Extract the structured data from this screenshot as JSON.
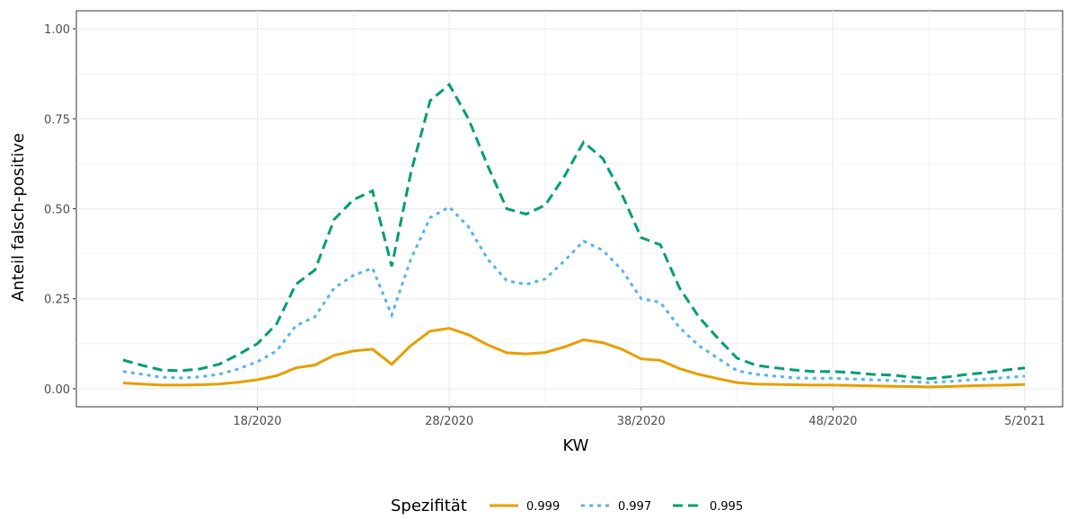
{
  "chart_data": {
    "type": "line",
    "x_label": "KW",
    "y_label": "Anteil falsch-positive",
    "legend_title": "Spezifität",
    "legend_position": "bottom",
    "grid": true,
    "categories": [
      "11/2020",
      "12/2020",
      "13/2020",
      "14/2020",
      "15/2020",
      "16/2020",
      "17/2020",
      "18/2020",
      "19/2020",
      "20/2020",
      "21/2020",
      "22/2020",
      "23/2020",
      "24/2020",
      "25/2020",
      "26/2020",
      "27/2020",
      "28/2020",
      "29/2020",
      "30/2020",
      "31/2020",
      "32/2020",
      "33/2020",
      "34/2020",
      "35/2020",
      "36/2020",
      "37/2020",
      "38/2020",
      "39/2020",
      "40/2020",
      "41/2020",
      "42/2020",
      "43/2020",
      "44/2020",
      "45/2020",
      "46/2020",
      "47/2020",
      "48/2020",
      "49/2020",
      "50/2020",
      "51/2020",
      "52/2020",
      "53/2020",
      "1/2021",
      "2/2021",
      "3/2021",
      "4/2021",
      "5/2021"
    ],
    "xticks": [
      {
        "value": 7,
        "label": "18/2020"
      },
      {
        "value": 17,
        "label": "28/2020"
      },
      {
        "value": 27,
        "label": "38/2020"
      },
      {
        "value": 37,
        "label": "48/2020"
      },
      {
        "value": 47,
        "label": "5/2021"
      }
    ],
    "ylim": [
      -0.05,
      1.05
    ],
    "yticks": [
      {
        "value": 0,
        "label": "0.00"
      },
      {
        "value": 0.25,
        "label": "0.25"
      },
      {
        "value": 0.5,
        "label": "0.50"
      },
      {
        "value": 0.75,
        "label": "0.75"
      },
      {
        "value": 1,
        "label": "1.00"
      }
    ],
    "series": [
      {
        "name": "0.999",
        "color": "#e69f00",
        "dash": "solid",
        "values": [
          0.016,
          0.013,
          0.01,
          0.01,
          0.011,
          0.013,
          0.018,
          0.025,
          0.036,
          0.058,
          0.066,
          0.093,
          0.105,
          0.11,
          0.068,
          0.12,
          0.16,
          0.168,
          0.15,
          0.122,
          0.1,
          0.097,
          0.101,
          0.116,
          0.136,
          0.128,
          0.11,
          0.083,
          0.079,
          0.056,
          0.04,
          0.028,
          0.017,
          0.013,
          0.012,
          0.011,
          0.01,
          0.01,
          0.009,
          0.008,
          0.007,
          0.006,
          0.005,
          0.006,
          0.008,
          0.009,
          0.01,
          0.012
        ]
      },
      {
        "name": "0.997",
        "color": "#56b4e9",
        "dash": "dotted",
        "values": [
          0.048,
          0.04,
          0.032,
          0.03,
          0.033,
          0.04,
          0.055,
          0.075,
          0.105,
          0.175,
          0.2,
          0.28,
          0.315,
          0.335,
          0.205,
          0.36,
          0.475,
          0.505,
          0.45,
          0.36,
          0.3,
          0.29,
          0.305,
          0.355,
          0.41,
          0.385,
          0.33,
          0.25,
          0.24,
          0.17,
          0.12,
          0.085,
          0.05,
          0.04,
          0.035,
          0.03,
          0.029,
          0.029,
          0.027,
          0.025,
          0.023,
          0.02,
          0.017,
          0.02,
          0.024,
          0.027,
          0.031,
          0.035
        ]
      },
      {
        "name": "0.995",
        "color": "#009e73",
        "dash": "dashed",
        "values": [
          0.08,
          0.065,
          0.052,
          0.05,
          0.055,
          0.068,
          0.095,
          0.125,
          0.18,
          0.29,
          0.33,
          0.47,
          0.525,
          0.55,
          0.34,
          0.6,
          0.8,
          0.845,
          0.75,
          0.62,
          0.5,
          0.485,
          0.51,
          0.59,
          0.685,
          0.64,
          0.54,
          0.42,
          0.4,
          0.28,
          0.2,
          0.14,
          0.085,
          0.065,
          0.058,
          0.052,
          0.048,
          0.048,
          0.045,
          0.04,
          0.038,
          0.033,
          0.028,
          0.033,
          0.04,
          0.045,
          0.052,
          0.058
        ]
      }
    ]
  }
}
